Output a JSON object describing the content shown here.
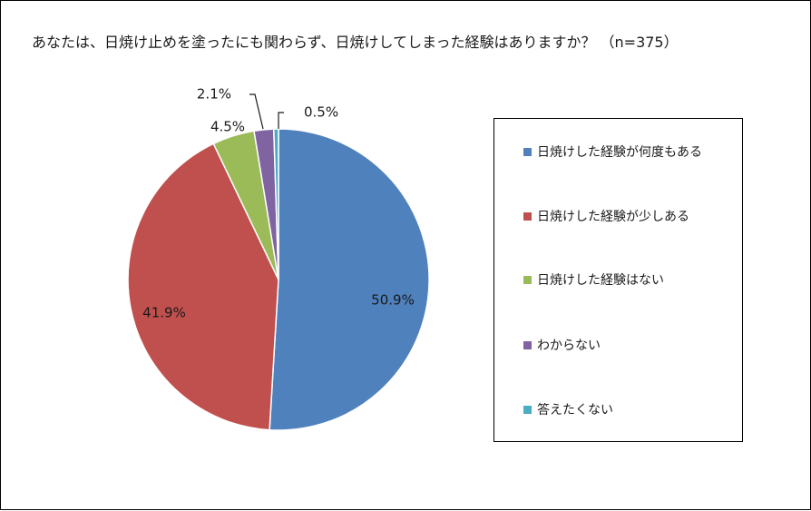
{
  "chart_data": {
    "type": "pie",
    "title": "あなたは、日焼け止めを塗ったにも関わらず、日焼けしてしまった経験はありますか？ （n=375）",
    "slices": [
      {
        "name": "日焼けした経験が何度もある",
        "value": 50.9,
        "label": "50.9%",
        "color": "#4F81BD"
      },
      {
        "name": "日焼けした経験が少しある",
        "value": 41.9,
        "label": "41.9%",
        "color": "#C0504D"
      },
      {
        "name": "日焼けした経験はない",
        "value": 4.5,
        "label": "4.5%",
        "color": "#9BBB59"
      },
      {
        "name": "わからない",
        "value": 2.1,
        "label": "2.1%",
        "color": "#8064A2"
      },
      {
        "name": "答えたくない",
        "value": 0.5,
        "label": "0.5%",
        "color": "#4BACC6"
      }
    ],
    "start_angle_deg": 0,
    "direction": "clockwise",
    "legend_position": "right"
  }
}
